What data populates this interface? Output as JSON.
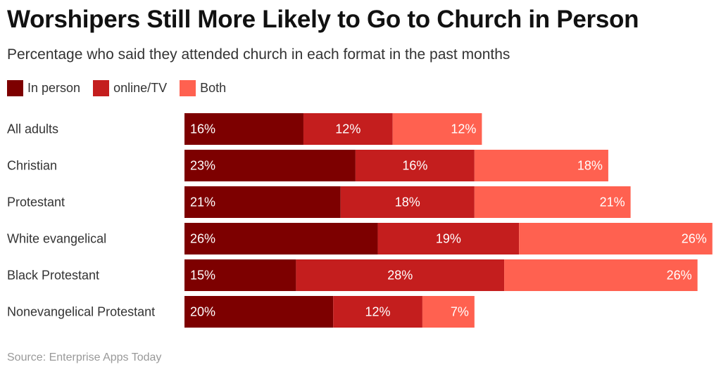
{
  "chart_data": {
    "type": "bar",
    "orientation": "horizontal",
    "stacked": true,
    "title": "Worshipers Still More Likely to Go to Church in Person",
    "subtitle": "Percentage who said they attended church in each format in the past months",
    "categories": [
      "All adults",
      "Christian",
      "Protestant",
      "White evangelical",
      "Black Protestant",
      "Nonevangelical Protestant"
    ],
    "series": [
      {
        "name": "In person",
        "color": "#7d0000",
        "values": [
          16,
          23,
          21,
          26,
          15,
          20
        ]
      },
      {
        "name": "online/TV",
        "color": "#c41e1e",
        "values": [
          12,
          16,
          18,
          19,
          28,
          12
        ]
      },
      {
        "name": "Both",
        "color": "#ff6150",
        "values": [
          12,
          18,
          21,
          26,
          26,
          7
        ]
      }
    ],
    "value_suffix": "%",
    "xlim": [
      0,
      71
    ],
    "grid": false,
    "legend_position": "top-left",
    "source": "Source: Enterprise Apps Today"
  }
}
